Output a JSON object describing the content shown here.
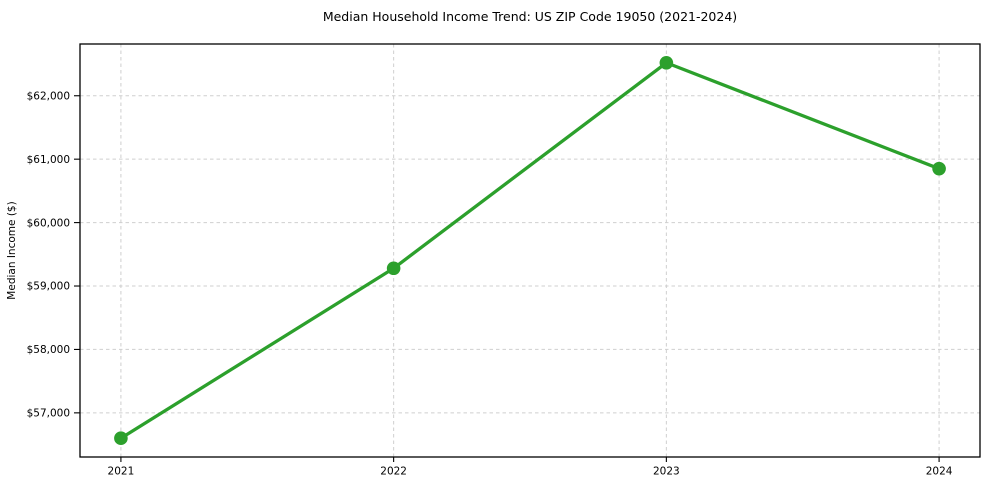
{
  "chart_data": {
    "type": "line",
    "title": "Median Household Income Trend: US ZIP Code 19050 (2021-2024)",
    "xlabel": "",
    "ylabel": "Median Income ($)",
    "categories": [
      2021,
      2022,
      2023,
      2024
    ],
    "xtick_labels": [
      "2021",
      "2022",
      "2023",
      "2024"
    ],
    "series": [
      {
        "name": "Median Household Income",
        "values": [
          56600,
          59280,
          62520,
          60850
        ]
      }
    ],
    "yticks": [
      57000,
      58000,
      59000,
      60000,
      61000,
      62000
    ],
    "ytick_labels": [
      "$57,000",
      "$58,000",
      "$59,000",
      "$60,000",
      "$61,000",
      "$62,000"
    ],
    "xlim": [
      2020.85,
      2024.15
    ],
    "ylim": [
      56304,
      62816
    ],
    "grid": true,
    "legend_position": "none",
    "colors": {
      "line": "#2ca02c",
      "marker": "#2ca02c",
      "grid": "#cfcfcf",
      "spine": "#000000",
      "background": "#ffffff"
    }
  }
}
